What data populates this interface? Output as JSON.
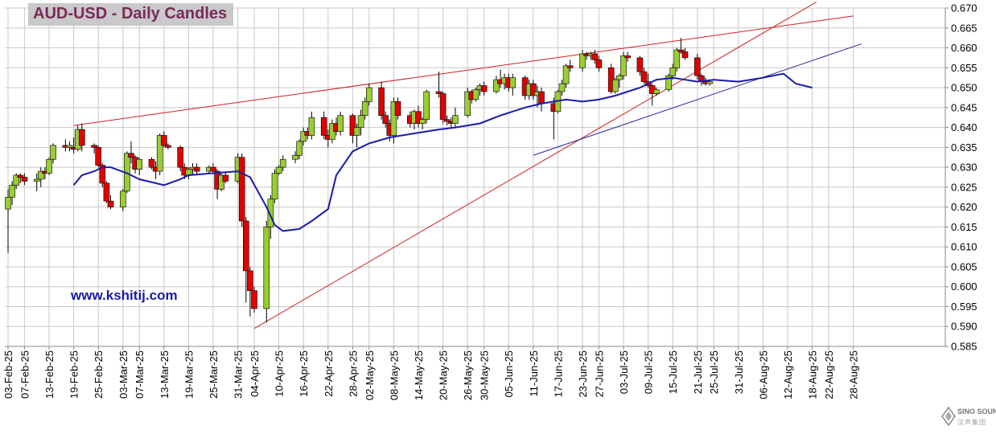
{
  "title": "AUD-USD - Daily Candles",
  "watermark": "www.kshitij.com",
  "logo": {
    "name": "SINO SOUND",
    "sub": "汉声集团",
    "icon": "diamond-logo-icon"
  },
  "colors": {
    "up_candle": "#9acd32",
    "down_candle": "#e00000",
    "ma": "#1a1aa8",
    "trend_red": "#d02020",
    "trend_blue": "#2a2aa0",
    "grid": "#c8c8c8"
  },
  "chart_data": {
    "type": "candlestick",
    "title": "AUD-USD - Daily Candles",
    "ylim": [
      0.585,
      0.67
    ],
    "y_ticks": [
      "0.670",
      "0.665",
      "0.660",
      "0.655",
      "0.650",
      "0.645",
      "0.640",
      "0.635",
      "0.630",
      "0.625",
      "0.620",
      "0.615",
      "0.610",
      "0.605",
      "0.600",
      "0.595",
      "0.590",
      "0.585"
    ],
    "x_ticks": [
      "03-Feb-25",
      "07-Feb-25",
      "13-Feb-25",
      "19-Feb-25",
      "25-Feb-25",
      "03-Mar-25",
      "07-Mar-25",
      "13-Mar-25",
      "19-Mar-25",
      "25-Mar-25",
      "31-Mar-25",
      "04-Apr-25",
      "10-Apr-25",
      "16-Apr-25",
      "22-Apr-25",
      "28-Apr-25",
      "02-May-25",
      "08-May-25",
      "14-May-25",
      "20-May-25",
      "26-May-25",
      "30-May-25",
      "05-Jun-25",
      "11-Jun-25",
      "17-Jun-25",
      "23-Jun-25",
      "27-Jun-25",
      "03-Jul-25",
      "09-Jul-25",
      "15-Jul-25",
      "21-Jul-25",
      "25-Jul-25",
      "31-Jul-25",
      "06-Aug-25",
      "12-Aug-25",
      "18-Aug-25",
      "22-Aug-25",
      "28-Aug-25"
    ],
    "grid": true,
    "candles": [
      {
        "o": 0.6195,
        "h": 0.6245,
        "l": 0.6085,
        "c": 0.6225
      },
      {
        "o": 0.6225,
        "h": 0.6265,
        "l": 0.6205,
        "c": 0.6255
      },
      {
        "o": 0.6255,
        "h": 0.6285,
        "l": 0.6245,
        "c": 0.628
      },
      {
        "o": 0.628,
        "h": 0.6285,
        "l": 0.626,
        "c": 0.6275
      },
      {
        "o": 0.6275,
        "h": 0.6285,
        "l": 0.6255,
        "c": 0.6265
      },
      {
        "o": 0.6265,
        "h": 0.6285,
        "l": 0.624,
        "c": 0.627
      },
      {
        "o": 0.627,
        "h": 0.63,
        "l": 0.625,
        "c": 0.629
      },
      {
        "o": 0.629,
        "h": 0.63,
        "l": 0.627,
        "c": 0.6285
      },
      {
        "o": 0.6285,
        "h": 0.6325,
        "l": 0.628,
        "c": 0.632
      },
      {
        "o": 0.632,
        "h": 0.636,
        "l": 0.631,
        "c": 0.6355
      },
      {
        "o": 0.6355,
        "h": 0.637,
        "l": 0.634,
        "c": 0.635
      },
      {
        "o": 0.635,
        "h": 0.6365,
        "l": 0.634,
        "c": 0.6355
      },
      {
        "o": 0.635,
        "h": 0.6375,
        "l": 0.6335,
        "c": 0.6345
      },
      {
        "o": 0.6345,
        "h": 0.6405,
        "l": 0.634,
        "c": 0.6395
      },
      {
        "o": 0.6395,
        "h": 0.641,
        "l": 0.634,
        "c": 0.6355
      },
      {
        "o": 0.6355,
        "h": 0.636,
        "l": 0.6335,
        "c": 0.635
      },
      {
        "o": 0.635,
        "h": 0.6355,
        "l": 0.63,
        "c": 0.6305
      },
      {
        "o": 0.6305,
        "h": 0.631,
        "l": 0.625,
        "c": 0.626
      },
      {
        "o": 0.626,
        "h": 0.6265,
        "l": 0.621,
        "c": 0.6215
      },
      {
        "o": 0.6215,
        "h": 0.623,
        "l": 0.6195,
        "c": 0.62
      },
      {
        "o": 0.62,
        "h": 0.6245,
        "l": 0.619,
        "c": 0.624
      },
      {
        "o": 0.624,
        "h": 0.634,
        "l": 0.6235,
        "c": 0.6335
      },
      {
        "o": 0.6335,
        "h": 0.6365,
        "l": 0.631,
        "c": 0.6325
      },
      {
        "o": 0.6325,
        "h": 0.633,
        "l": 0.6285,
        "c": 0.6295
      },
      {
        "o": 0.6295,
        "h": 0.6325,
        "l": 0.628,
        "c": 0.632
      },
      {
        "o": 0.632,
        "h": 0.6325,
        "l": 0.6295,
        "c": 0.63
      },
      {
        "o": 0.63,
        "h": 0.6315,
        "l": 0.627,
        "c": 0.629
      },
      {
        "o": 0.629,
        "h": 0.6385,
        "l": 0.628,
        "c": 0.638
      },
      {
        "o": 0.638,
        "h": 0.639,
        "l": 0.635,
        "c": 0.6355
      },
      {
        "o": 0.6355,
        "h": 0.636,
        "l": 0.6345,
        "c": 0.635
      },
      {
        "o": 0.635,
        "h": 0.6355,
        "l": 0.629,
        "c": 0.63
      },
      {
        "o": 0.63,
        "h": 0.631,
        "l": 0.627,
        "c": 0.628
      },
      {
        "o": 0.628,
        "h": 0.63,
        "l": 0.627,
        "c": 0.6295
      },
      {
        "o": 0.6295,
        "h": 0.631,
        "l": 0.628,
        "c": 0.63
      },
      {
        "o": 0.63,
        "h": 0.631,
        "l": 0.628,
        "c": 0.629
      },
      {
        "o": 0.629,
        "h": 0.6305,
        "l": 0.6285,
        "c": 0.63
      },
      {
        "o": 0.63,
        "h": 0.631,
        "l": 0.6285,
        "c": 0.629
      },
      {
        "o": 0.629,
        "h": 0.6295,
        "l": 0.622,
        "c": 0.6245
      },
      {
        "o": 0.6245,
        "h": 0.6285,
        "l": 0.624,
        "c": 0.628
      },
      {
        "o": 0.628,
        "h": 0.629,
        "l": 0.626,
        "c": 0.6265
      },
      {
        "o": 0.6265,
        "h": 0.6335,
        "l": 0.626,
        "c": 0.6325
      },
      {
        "o": 0.6325,
        "h": 0.6335,
        "l": 0.615,
        "c": 0.6165
      },
      {
        "o": 0.6165,
        "h": 0.6175,
        "l": 0.596,
        "c": 0.604
      },
      {
        "o": 0.604,
        "h": 0.605,
        "l": 0.5925,
        "c": 0.599
      },
      {
        "o": 0.599,
        "h": 0.6,
        "l": 0.5935,
        "c": 0.5945
      },
      {
        "o": 0.5945,
        "h": 0.6165,
        "l": 0.591,
        "c": 0.615
      },
      {
        "o": 0.615,
        "h": 0.623,
        "l": 0.612,
        "c": 0.622
      },
      {
        "o": 0.622,
        "h": 0.6295,
        "l": 0.621,
        "c": 0.6285
      },
      {
        "o": 0.6285,
        "h": 0.6305,
        "l": 0.628,
        "c": 0.63
      },
      {
        "o": 0.63,
        "h": 0.633,
        "l": 0.629,
        "c": 0.632
      },
      {
        "o": 0.632,
        "h": 0.634,
        "l": 0.631,
        "c": 0.633
      },
      {
        "o": 0.633,
        "h": 0.637,
        "l": 0.632,
        "c": 0.6365
      },
      {
        "o": 0.6365,
        "h": 0.64,
        "l": 0.6355,
        "c": 0.639
      },
      {
        "o": 0.639,
        "h": 0.64,
        "l": 0.637,
        "c": 0.638
      },
      {
        "o": 0.638,
        "h": 0.644,
        "l": 0.637,
        "c": 0.6425
      },
      {
        "o": 0.6425,
        "h": 0.644,
        "l": 0.637,
        "c": 0.638
      },
      {
        "o": 0.638,
        "h": 0.6395,
        "l": 0.635,
        "c": 0.637
      },
      {
        "o": 0.637,
        "h": 0.642,
        "l": 0.636,
        "c": 0.641
      },
      {
        "o": 0.641,
        "h": 0.6425,
        "l": 0.638,
        "c": 0.639
      },
      {
        "o": 0.639,
        "h": 0.644,
        "l": 0.638,
        "c": 0.643
      },
      {
        "o": 0.643,
        "h": 0.6435,
        "l": 0.636,
        "c": 0.638
      },
      {
        "o": 0.638,
        "h": 0.641,
        "l": 0.635,
        "c": 0.64
      },
      {
        "o": 0.64,
        "h": 0.6445,
        "l": 0.638,
        "c": 0.643
      },
      {
        "o": 0.643,
        "h": 0.6475,
        "l": 0.642,
        "c": 0.6465
      },
      {
        "o": 0.6465,
        "h": 0.651,
        "l": 0.6455,
        "c": 0.65
      },
      {
        "o": 0.65,
        "h": 0.6515,
        "l": 0.642,
        "c": 0.643
      },
      {
        "o": 0.643,
        "h": 0.644,
        "l": 0.64,
        "c": 0.641
      },
      {
        "o": 0.641,
        "h": 0.642,
        "l": 0.6365,
        "c": 0.638
      },
      {
        "o": 0.638,
        "h": 0.6475,
        "l": 0.636,
        "c": 0.6465
      },
      {
        "o": 0.6465,
        "h": 0.6475,
        "l": 0.642,
        "c": 0.643
      },
      {
        "o": 0.643,
        "h": 0.644,
        "l": 0.64,
        "c": 0.641
      },
      {
        "o": 0.641,
        "h": 0.6445,
        "l": 0.6395,
        "c": 0.644
      },
      {
        "o": 0.644,
        "h": 0.6455,
        "l": 0.64,
        "c": 0.641
      },
      {
        "o": 0.641,
        "h": 0.6425,
        "l": 0.6395,
        "c": 0.642
      },
      {
        "o": 0.642,
        "h": 0.6495,
        "l": 0.641,
        "c": 0.649
      },
      {
        "o": 0.649,
        "h": 0.654,
        "l": 0.6475,
        "c": 0.6485
      },
      {
        "o": 0.6485,
        "h": 0.649,
        "l": 0.641,
        "c": 0.642
      },
      {
        "o": 0.642,
        "h": 0.643,
        "l": 0.6405,
        "c": 0.6415
      },
      {
        "o": 0.6415,
        "h": 0.6425,
        "l": 0.64,
        "c": 0.641
      },
      {
        "o": 0.641,
        "h": 0.645,
        "l": 0.64,
        "c": 0.643
      },
      {
        "o": 0.643,
        "h": 0.65,
        "l": 0.6425,
        "c": 0.649
      },
      {
        "o": 0.649,
        "h": 0.6495,
        "l": 0.646,
        "c": 0.647
      },
      {
        "o": 0.647,
        "h": 0.65,
        "l": 0.6465,
        "c": 0.6495
      },
      {
        "o": 0.6495,
        "h": 0.651,
        "l": 0.648,
        "c": 0.6505
      },
      {
        "o": 0.6505,
        "h": 0.6515,
        "l": 0.648,
        "c": 0.649
      },
      {
        "o": 0.649,
        "h": 0.653,
        "l": 0.6485,
        "c": 0.652
      },
      {
        "o": 0.652,
        "h": 0.6545,
        "l": 0.65,
        "c": 0.651
      },
      {
        "o": 0.651,
        "h": 0.6535,
        "l": 0.6495,
        "c": 0.6525
      },
      {
        "o": 0.6525,
        "h": 0.6535,
        "l": 0.649,
        "c": 0.65
      },
      {
        "o": 0.65,
        "h": 0.6535,
        "l": 0.648,
        "c": 0.6525
      },
      {
        "o": 0.6525,
        "h": 0.653,
        "l": 0.647,
        "c": 0.648
      },
      {
        "o": 0.648,
        "h": 0.652,
        "l": 0.647,
        "c": 0.651
      },
      {
        "o": 0.651,
        "h": 0.652,
        "l": 0.647,
        "c": 0.648
      },
      {
        "o": 0.648,
        "h": 0.6505,
        "l": 0.645,
        "c": 0.649
      },
      {
        "o": 0.649,
        "h": 0.65,
        "l": 0.644,
        "c": 0.646
      },
      {
        "o": 0.646,
        "h": 0.6475,
        "l": 0.637,
        "c": 0.644
      },
      {
        "o": 0.644,
        "h": 0.6495,
        "l": 0.6435,
        "c": 0.649
      },
      {
        "o": 0.649,
        "h": 0.652,
        "l": 0.648,
        "c": 0.651
      },
      {
        "o": 0.651,
        "h": 0.656,
        "l": 0.65,
        "c": 0.6555
      },
      {
        "o": 0.6555,
        "h": 0.657,
        "l": 0.654,
        "c": 0.655
      },
      {
        "o": 0.655,
        "h": 0.6595,
        "l": 0.654,
        "c": 0.6585
      },
      {
        "o": 0.6585,
        "h": 0.659,
        "l": 0.657,
        "c": 0.658
      },
      {
        "o": 0.658,
        "h": 0.659,
        "l": 0.657,
        "c": 0.6585
      },
      {
        "o": 0.6585,
        "h": 0.6595,
        "l": 0.656,
        "c": 0.657
      },
      {
        "o": 0.657,
        "h": 0.658,
        "l": 0.654,
        "c": 0.655
      },
      {
        "o": 0.655,
        "h": 0.656,
        "l": 0.6485,
        "c": 0.649
      },
      {
        "o": 0.649,
        "h": 0.6525,
        "l": 0.6485,
        "c": 0.652
      },
      {
        "o": 0.652,
        "h": 0.6535,
        "l": 0.65,
        "c": 0.653
      },
      {
        "o": 0.653,
        "h": 0.659,
        "l": 0.652,
        "c": 0.658
      },
      {
        "o": 0.658,
        "h": 0.659,
        "l": 0.6565,
        "c": 0.6575
      },
      {
        "o": 0.6575,
        "h": 0.658,
        "l": 0.653,
        "c": 0.654
      },
      {
        "o": 0.654,
        "h": 0.655,
        "l": 0.651,
        "c": 0.6515
      },
      {
        "o": 0.6515,
        "h": 0.6535,
        "l": 0.65,
        "c": 0.6505
      },
      {
        "o": 0.6505,
        "h": 0.651,
        "l": 0.6455,
        "c": 0.6485
      },
      {
        "o": 0.6485,
        "h": 0.65,
        "l": 0.648,
        "c": 0.6495
      },
      {
        "o": 0.6495,
        "h": 0.6535,
        "l": 0.649,
        "c": 0.653
      },
      {
        "o": 0.653,
        "h": 0.656,
        "l": 0.652,
        "c": 0.655
      },
      {
        "o": 0.655,
        "h": 0.66,
        "l": 0.654,
        "c": 0.6595
      },
      {
        "o": 0.6595,
        "h": 0.6625,
        "l": 0.6585,
        "c": 0.659
      },
      {
        "o": 0.659,
        "h": 0.66,
        "l": 0.657,
        "c": 0.6575
      },
      {
        "o": 0.6575,
        "h": 0.6585,
        "l": 0.652,
        "c": 0.653
      },
      {
        "o": 0.653,
        "h": 0.6535,
        "l": 0.6505,
        "c": 0.6515
      },
      {
        "o": 0.6515,
        "h": 0.6525,
        "l": 0.6505,
        "c": 0.651
      },
      {
        "o": 0.651,
        "h": 0.652,
        "l": 0.6505,
        "c": 0.6515
      }
    ],
    "moving_average": [
      {
        "d": "19-Feb-25",
        "v": 0.6255
      },
      {
        "d": "21-Feb-25",
        "v": 0.628
      },
      {
        "d": "24-Feb-25",
        "v": 0.629
      },
      {
        "d": "26-Feb-25",
        "v": 0.63
      },
      {
        "d": "28-Feb-25",
        "v": 0.63
      },
      {
        "d": "04-Mar-25",
        "v": 0.6285
      },
      {
        "d": "07-Mar-25",
        "v": 0.627
      },
      {
        "d": "11-Mar-25",
        "v": 0.626
      },
      {
        "d": "13-Mar-25",
        "v": 0.6255
      },
      {
        "d": "17-Mar-25",
        "v": 0.627
      },
      {
        "d": "19-Mar-25",
        "v": 0.628
      },
      {
        "d": "25-Mar-25",
        "v": 0.6285
      },
      {
        "d": "31-Mar-25",
        "v": 0.629
      },
      {
        "d": "03-Apr-25",
        "v": 0.6275
      },
      {
        "d": "07-Apr-25",
        "v": 0.62
      },
      {
        "d": "09-Apr-25",
        "v": 0.6155
      },
      {
        "d": "11-Apr-25",
        "v": 0.614
      },
      {
        "d": "15-Apr-25",
        "v": 0.6145
      },
      {
        "d": "18-Apr-25",
        "v": 0.6165
      },
      {
        "d": "22-Apr-25",
        "v": 0.6195
      },
      {
        "d": "24-Apr-25",
        "v": 0.628
      },
      {
        "d": "28-Apr-25",
        "v": 0.634
      },
      {
        "d": "02-May-25",
        "v": 0.636
      },
      {
        "d": "07-May-25",
        "v": 0.6375
      },
      {
        "d": "13-May-25",
        "v": 0.6385
      },
      {
        "d": "19-May-25",
        "v": 0.6395
      },
      {
        "d": "23-May-25",
        "v": 0.64
      },
      {
        "d": "29-May-25",
        "v": 0.641
      },
      {
        "d": "03-Jun-25",
        "v": 0.643
      },
      {
        "d": "09-Jun-25",
        "v": 0.645
      },
      {
        "d": "13-Jun-25",
        "v": 0.646
      },
      {
        "d": "19-Jun-25",
        "v": 0.647
      },
      {
        "d": "23-Jun-25",
        "v": 0.6465
      },
      {
        "d": "27-Jun-25",
        "v": 0.647
      },
      {
        "d": "01-Jul-25",
        "v": 0.648
      },
      {
        "d": "07-Jul-25",
        "v": 0.65
      },
      {
        "d": "11-Jul-25",
        "v": 0.652
      },
      {
        "d": "15-Jul-25",
        "v": 0.6525
      },
      {
        "d": "21-Jul-25",
        "v": 0.6515
      },
      {
        "d": "25-Jul-25",
        "v": 0.652
      },
      {
        "d": "31-Jul-25",
        "v": 0.6515
      },
      {
        "d": "06-Aug-25",
        "v": 0.6525
      },
      {
        "d": "11-Aug-25",
        "v": 0.6535
      },
      {
        "d": "14-Aug-25",
        "v": 0.651
      },
      {
        "d": "18-Aug-25",
        "v": 0.65
      }
    ],
    "trendlines": [
      {
        "color": "red",
        "from": {
          "d": "19-Feb-25",
          "v": 0.6405
        },
        "to": {
          "d": "28-Aug-25",
          "v": 0.668
        }
      },
      {
        "color": "red",
        "from": {
          "d": "04-Apr-25",
          "v": 0.5895
        },
        "to": {
          "d": "19-Aug-25",
          "v": 0.6715
        }
      },
      {
        "color": "blue",
        "from": {
          "d": "11-Jun-25",
          "v": 0.633
        },
        "to": {
          "d": "30-Aug-25",
          "v": 0.661
        }
      }
    ]
  }
}
